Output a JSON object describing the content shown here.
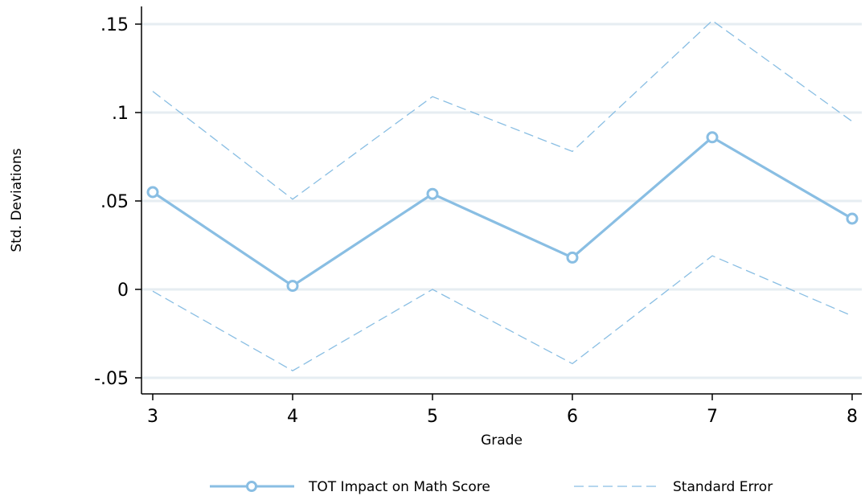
{
  "chart_data": {
    "type": "line",
    "title": "",
    "xlabel": "Grade",
    "ylabel": "Std. Deviations",
    "x": [
      3,
      4,
      5,
      6,
      7,
      8
    ],
    "xlim": [
      3,
      8
    ],
    "ylim": [
      -0.05,
      0.15
    ],
    "x_ticks": [
      3,
      4,
      5,
      6,
      7,
      8
    ],
    "x_tick_labels": [
      "3",
      "4",
      "5",
      "6",
      "7",
      "8"
    ],
    "y_ticks": [
      -0.05,
      0,
      0.05,
      0.1,
      0.15
    ],
    "y_tick_labels": [
      "-.05",
      "0",
      ".05",
      ".1",
      ".15"
    ],
    "grid": true,
    "legend_position": "bottom",
    "series": [
      {
        "name": "TOT Impact on Math Score",
        "style": "solid-line-with-hollow-circles",
        "color": "#89BEE3",
        "values": [
          0.055,
          0.002,
          0.054,
          0.018,
          0.086,
          0.04
        ]
      },
      {
        "name": "Standard Error",
        "style": "dashed",
        "color": "#89BEE3",
        "upper": [
          0.112,
          0.051,
          0.109,
          0.078,
          0.152,
          0.095
        ],
        "lower": [
          -0.001,
          -0.046,
          0.0,
          -0.042,
          0.019,
          -0.015
        ]
      }
    ]
  }
}
